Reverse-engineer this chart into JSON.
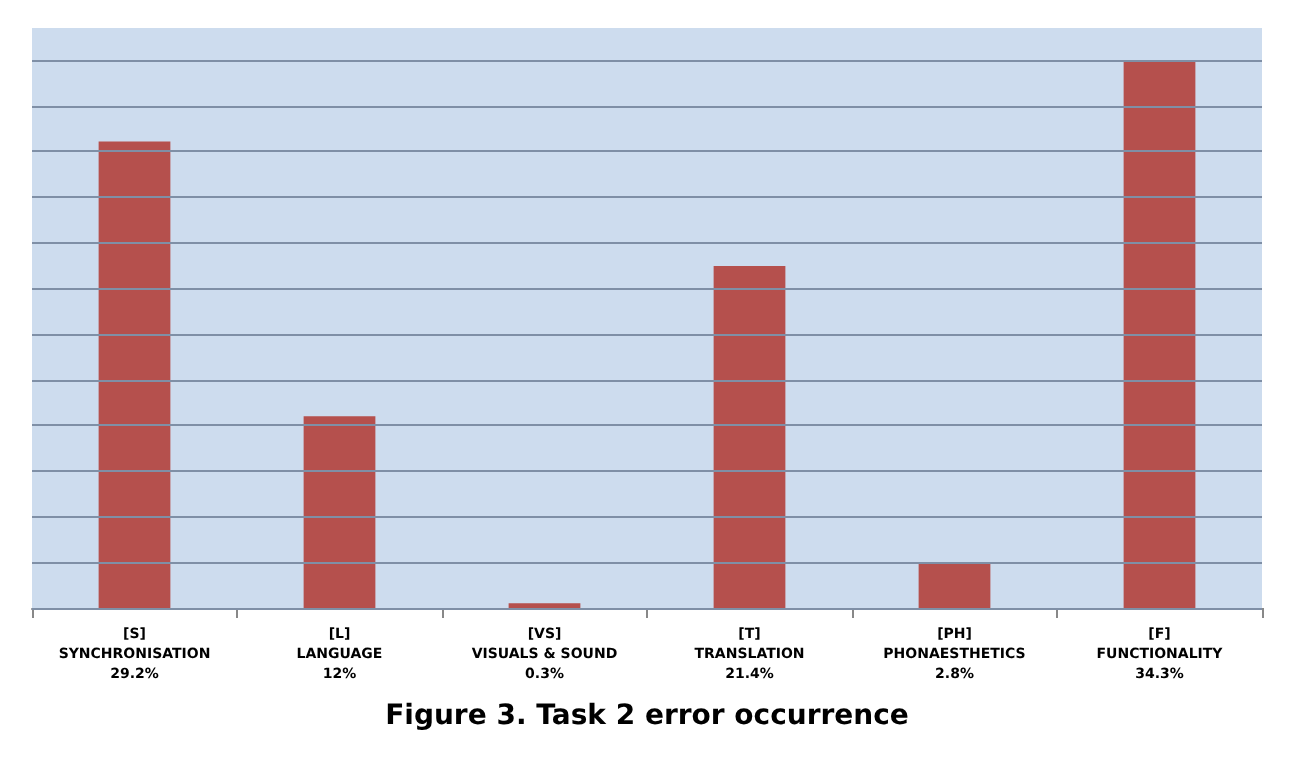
{
  "chart_data": {
    "type": "bar",
    "title": "Figure 3. Task 2 error occurrence",
    "categories": [
      "[S]\nSYNCHRONISATION",
      "[L]\nLANGUAGE",
      "[VS]\nVISUALS & SOUND",
      "[T]\nTRANSLATION",
      "[PH]\nPHONAESTHETICS",
      "[F]\nFUNCTIONALITY"
    ],
    "values": [
      29.2,
      12,
      0.3,
      21.4,
      2.8,
      34.3
    ],
    "value_labels": [
      "29.2%",
      "12%",
      "0.3%",
      "21.4%",
      "2.8%",
      "34.3%"
    ],
    "color": "#b5504d",
    "ylim": [
      0,
      36.3
    ],
    "yticks": [
      {
        "value": 0,
        "label": null
      },
      {
        "value": 2.86,
        "label": null
      },
      {
        "value": 5.72,
        "label": null
      },
      {
        "value": 8.58,
        "label": null
      },
      {
        "value": 11.43,
        "label": null
      },
      {
        "value": 14.29,
        "label": null
      },
      {
        "value": 17.15,
        "label": null
      },
      {
        "value": 20.01,
        "label": null
      },
      {
        "value": 22.87,
        "label": null
      },
      {
        "value": 25.73,
        "label": null
      },
      {
        "value": 28.58,
        "label": null
      },
      {
        "value": 31.44,
        "label": null
      },
      {
        "value": 34.3,
        "label": null
      }
    ],
    "tick_labels": "x",
    "grid": "y"
  }
}
